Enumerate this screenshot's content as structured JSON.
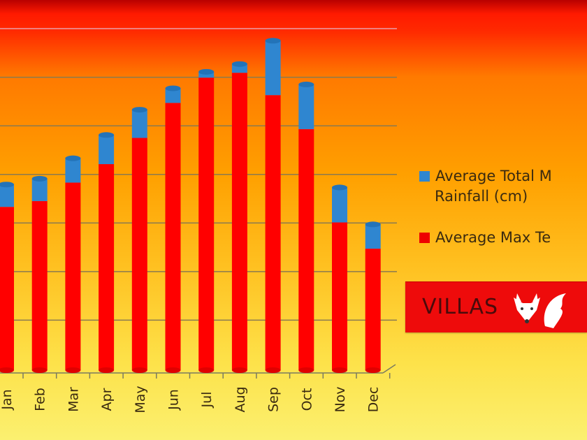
{
  "chart_data": {
    "type": "bar",
    "stacked": true,
    "style": "3d-cylinder",
    "categories": [
      "Jan",
      "Feb",
      "Mar",
      "Apr",
      "May",
      "Jun",
      "Jul",
      "Aug",
      "Sep",
      "Oct",
      "Nov",
      "Dec"
    ],
    "series": [
      {
        "name": "Average Max Te",
        "color": "#ff0000",
        "values": [
          16.8,
          17.4,
          19.3,
          21.2,
          23.9,
          27.5,
          30.1,
          30.6,
          28.3,
          24.8,
          15.2,
          12.5
        ]
      },
      {
        "name": "Average Total M Rainfall (cm)",
        "color": "#2f86d0",
        "values": [
          2.3,
          2.3,
          2.5,
          3.0,
          2.9,
          1.5,
          0.6,
          0.9,
          5.6,
          4.6,
          3.6,
          2.5
        ]
      }
    ],
    "ylim": [
      0,
      35
    ],
    "grid": true,
    "legend_position": "right"
  },
  "legend": {
    "rainfall_line1": "Average Total M",
    "rainfall_line2": "Rainfall (cm)",
    "temperature": "Average Max Te"
  },
  "logo": {
    "text": "VILLAS"
  }
}
